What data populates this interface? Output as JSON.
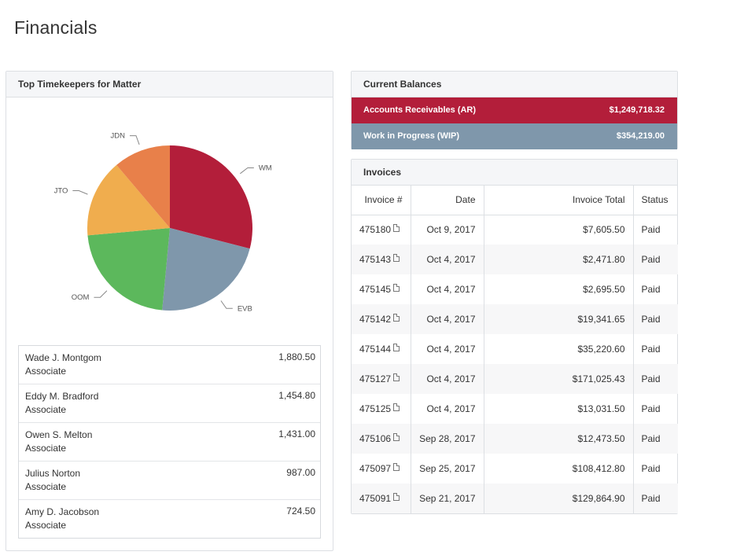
{
  "page": {
    "title": "Financials"
  },
  "timekeepers": {
    "header": "Top Timekeepers for Matter",
    "pie": [
      {
        "label": "WM",
        "value": 1880.5,
        "color": "#b31e3a"
      },
      {
        "label": "EVB",
        "value": 1454.8,
        "color": "#7f97ab"
      },
      {
        "label": "OOM",
        "value": 1431.0,
        "color": "#5cb85c"
      },
      {
        "label": "JTO",
        "value": 987.0,
        "color": "#f0ad4e"
      },
      {
        "label": "JDN",
        "value": 724.5,
        "color": "#e8804a"
      }
    ],
    "list": [
      {
        "name": "Wade J. Montgom",
        "role": "Associate",
        "hours": "1,880.50"
      },
      {
        "name": "Eddy M. Bradford",
        "role": "Associate",
        "hours": "1,454.80"
      },
      {
        "name": "Owen S. Melton",
        "role": "Associate",
        "hours": "1,431.00"
      },
      {
        "name": "Julius Norton",
        "role": "Associate",
        "hours": "987.00"
      },
      {
        "name": "Amy D. Jacobson",
        "role": "Associate",
        "hours": "724.50"
      }
    ]
  },
  "balances": {
    "header": "Current Balances",
    "ar": {
      "label": "Accounts Receivables (AR)",
      "value": "$1,249,718.32",
      "color": "#b31e3a"
    },
    "wip": {
      "label": "Work in Progress (WIP)",
      "value": "$354,219.00",
      "color": "#7f97ab"
    }
  },
  "invoices": {
    "header": "Invoices",
    "columns": [
      "Invoice #",
      "Date",
      "Invoice Total",
      "Status"
    ],
    "rows": [
      {
        "number": "475180",
        "date": "Oct 9, 2017",
        "total": "$7,605.50",
        "status": "Paid"
      },
      {
        "number": "475143",
        "date": "Oct 4, 2017",
        "total": "$2,471.80",
        "status": "Paid"
      },
      {
        "number": "475145",
        "date": "Oct 4, 2017",
        "total": "$2,695.50",
        "status": "Paid"
      },
      {
        "number": "475142",
        "date": "Oct 4, 2017",
        "total": "$19,341.65",
        "status": "Paid"
      },
      {
        "number": "475144",
        "date": "Oct 4, 2017",
        "total": "$35,220.60",
        "status": "Paid"
      },
      {
        "number": "475127",
        "date": "Oct 4, 2017",
        "total": "$171,025.43",
        "status": "Paid"
      },
      {
        "number": "475125",
        "date": "Oct 4, 2017",
        "total": "$13,031.50",
        "status": "Paid"
      },
      {
        "number": "475106",
        "date": "Sep 28, 2017",
        "total": "$12,473.50",
        "status": "Paid"
      },
      {
        "number": "475097",
        "date": "Sep 25, 2017",
        "total": "$108,412.80",
        "status": "Paid"
      },
      {
        "number": "475091",
        "date": "Sep 21, 2017",
        "total": "$129,864.90",
        "status": "Paid"
      }
    ],
    "row_icon": "pdf-file-icon"
  }
}
